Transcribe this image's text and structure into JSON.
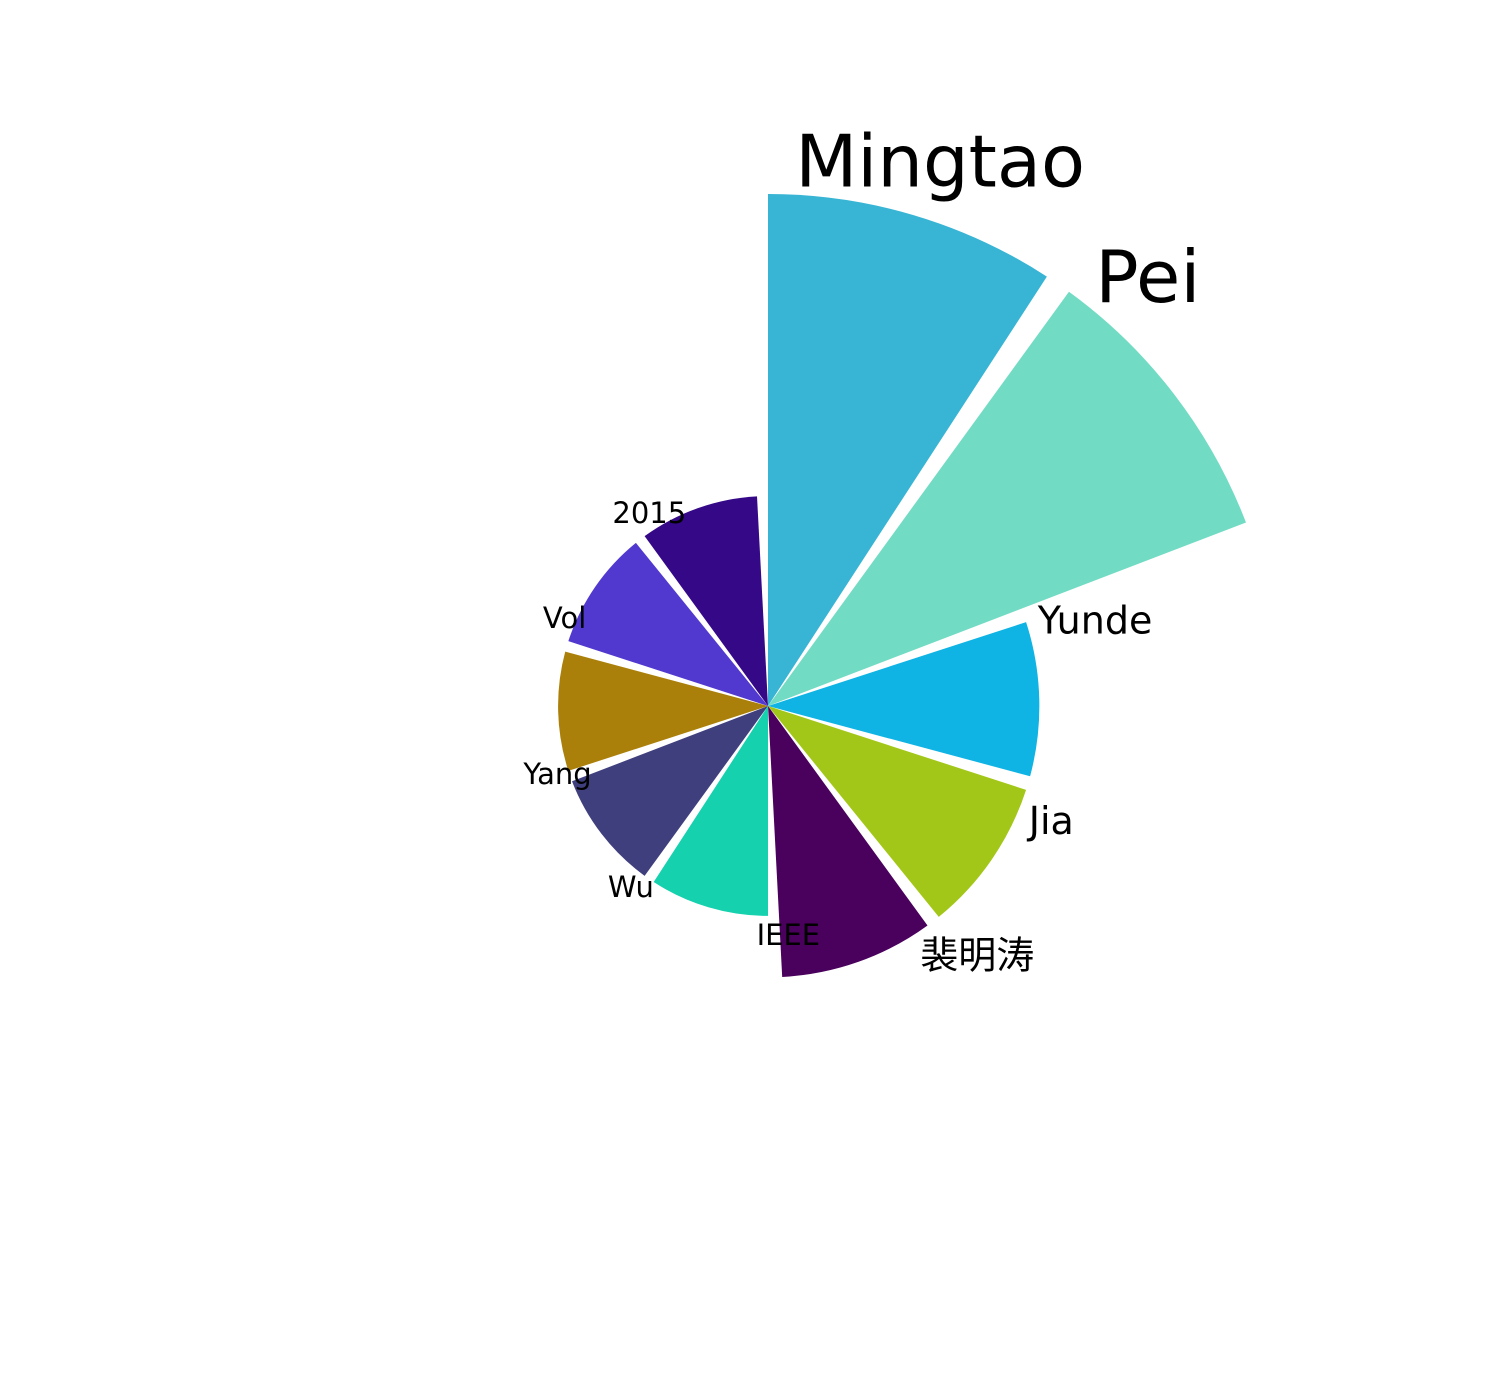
{
  "chart_data": {
    "type": "pie",
    "variant": "nightingale-rose",
    "title": "",
    "grid": false,
    "legend": "none",
    "slices": [
      {
        "label": "Mingtao",
        "value": 100,
        "color": "#38b4d4"
      },
      {
        "label": "Pei",
        "value": 100,
        "color": "#72dbc4"
      },
      {
        "label": "Yunde",
        "value": 53,
        "color": "#0fb4e4"
      },
      {
        "label": "Jia",
        "value": 53,
        "color": "#a2c718"
      },
      {
        "label": "裴明涛",
        "value": 53,
        "color": "#4a005d"
      },
      {
        "label": "IEEE",
        "value": 41,
        "color": "#15d1ae"
      },
      {
        "label": "Wu",
        "value": 41,
        "color": "#3f3f7e"
      },
      {
        "label": "Yang",
        "value": 41,
        "color": "#ab800a"
      },
      {
        "label": "Vol",
        "value": 41,
        "color": "#5139d0"
      },
      {
        "label": "2015",
        "value": 41,
        "color": "#340887"
      }
    ]
  }
}
